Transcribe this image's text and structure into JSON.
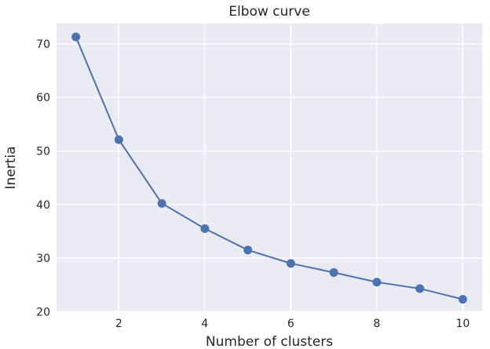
{
  "chart_data": {
    "type": "line",
    "title": "Elbow curve",
    "xlabel": "Number of clusters",
    "ylabel": "Inertia",
    "x": [
      1,
      2,
      3,
      4,
      5,
      6,
      7,
      8,
      9,
      10
    ],
    "series": [
      {
        "values": [
          71.3,
          52.1,
          40.2,
          35.5,
          31.5,
          29.0,
          27.3,
          25.5,
          24.3,
          22.3
        ],
        "color": "#4c72b0"
      }
    ],
    "xticks": [
      2,
      4,
      6,
      8,
      10
    ],
    "yticks": [
      20,
      30,
      40,
      50,
      60,
      70
    ],
    "xlim": [
      0.55,
      10.45
    ],
    "ylim": [
      19.9,
      73.8
    ],
    "grid": true,
    "background": "#eaeaf2",
    "grid_color": "#ffffff"
  }
}
